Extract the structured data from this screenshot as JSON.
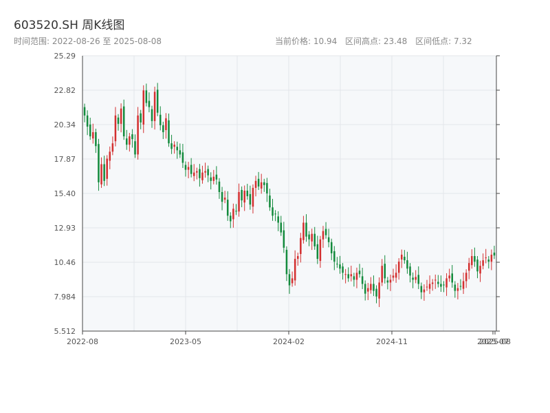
{
  "header": {
    "title": "603520.SH 周K线图",
    "range_label": "时间范围: 2022-08-26 至 2025-08-08",
    "current_price": "当前价格: 10.94",
    "high": "区间高点: 23.48",
    "low": "区间低点: 7.32"
  },
  "colors": {
    "up": "#d32f2f",
    "down": "#138a3c",
    "grid": "#e3e6ea",
    "plot_bg": "#f6f8fa",
    "axis": "#444444"
  },
  "chart_data": {
    "type": "candlestick",
    "title": "603520.SH 周K线图",
    "ylim": [
      5.512,
      25.29
    ],
    "y_ticks": [
      "25.29",
      "22.82",
      "20.34",
      "17.87",
      "15.40",
      "12.93",
      "10.46",
      "7.984",
      "5.512"
    ],
    "x_ticks": [
      "2022-08",
      "2023-05",
      "2024-02",
      "2024-11",
      "2025-07",
      "2025-08"
    ],
    "grid": true,
    "series_close": [
      21.0,
      20.2,
      19.5,
      19.8,
      18.8,
      16.2,
      17.5,
      16.3,
      17.9,
      18.4,
      19.0,
      21.0,
      20.4,
      21.5,
      19.5,
      18.9,
      19.5,
      19.3,
      18.2,
      21.0,
      20.5,
      22.8,
      21.9,
      21.6,
      20.6,
      22.7,
      21.2,
      20.3,
      19.8,
      20.8,
      19.0,
      18.6,
      18.9,
      18.5,
      18.2,
      17.6,
      17.1,
      17.3,
      16.8,
      16.9,
      17.0,
      16.5,
      16.9,
      17.0,
      16.7,
      16.3,
      16.6,
      16.4,
      15.5,
      14.8,
      15.1,
      13.8,
      13.4,
      14.3,
      14.1,
      15.5,
      14.9,
      15.6,
      15.2,
      14.6,
      15.8,
      16.3,
      15.9,
      16.2,
      16.0,
      15.4,
      14.4,
      13.8,
      13.9,
      13.3,
      12.6,
      11.5,
      9.6,
      8.8,
      9.3,
      10.7,
      10.9,
      12.2,
      13.3,
      12.3,
      12.1,
      12.5,
      11.6,
      10.7,
      12.1,
      12.7,
      12.4,
      11.9,
      11.1,
      10.5,
      10.3,
      10.0,
      9.7,
      9.6,
      9.3,
      9.6,
      9.2,
      9.7,
      9.6,
      8.9,
      8.2,
      8.6,
      8.9,
      8.4,
      8.0,
      9.0,
      10.2,
      9.3,
      9.0,
      9.2,
      9.5,
      9.7,
      10.5,
      11.0,
      10.6,
      10.0,
      9.5,
      9.2,
      9.4,
      8.9,
      8.3,
      8.5,
      8.7,
      8.9,
      9.0,
      9.2,
      8.9,
      8.7,
      8.8,
      9.3,
      9.5,
      9.0,
      8.4,
      8.6,
      8.7,
      9.1,
      9.7,
      10.4,
      10.9,
      10.5,
      9.8,
      10.2,
      10.6,
      10.8,
      10.5,
      11.0,
      10.94
    ],
    "last_close": 10.94,
    "period_high": 23.48,
    "period_low": 7.32
  }
}
